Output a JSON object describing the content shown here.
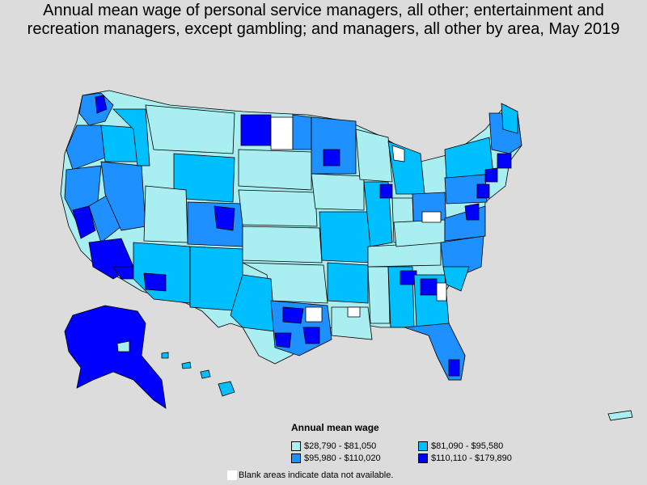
{
  "map": {
    "title": "Annual mean wage of personal service managers, all other; entertainment and\nrecreation managers, except gambling; and managers, all other by area, May 2019",
    "legend": {
      "title": "Annual mean wage",
      "items": [
        {
          "label": "$28,790 - $81,050",
          "color": "#a9eef0"
        },
        {
          "label": "$81,090 - $95,580",
          "color": "#00bfff"
        },
        {
          "label": "$95,980 - $110,020",
          "color": "#1e90ff"
        },
        {
          "label": "$110,110 - $179,890",
          "color": "#0000ff"
        }
      ],
      "blank_note": "Blank areas indicate data not available.",
      "blank_color": "#ffffff"
    }
  }
}
